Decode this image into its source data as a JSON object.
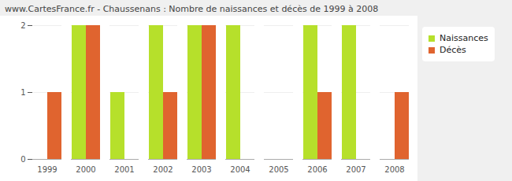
{
  "chart_data": {
    "type": "bar",
    "title": "www.CartesFrance.fr - Chaussenans : Nombre de naissances et décès de 1999 à 2008",
    "categories": [
      "1999",
      "2000",
      "2001",
      "2002",
      "2003",
      "2004",
      "2005",
      "2006",
      "2007",
      "2008"
    ],
    "series": [
      {
        "name": "Naissances",
        "color": "#b6e02b",
        "values": [
          0,
          2,
          1,
          2,
          2,
          2,
          0,
          2,
          2,
          0
        ]
      },
      {
        "name": "Décès",
        "color": "#e0642f",
        "values": [
          1,
          2,
          0,
          1,
          2,
          0,
          0,
          1,
          0,
          1
        ]
      }
    ],
    "ylim": [
      0,
      2
    ],
    "yticks": [
      0,
      1,
      2
    ],
    "grid": true,
    "legend": "top-right"
  }
}
